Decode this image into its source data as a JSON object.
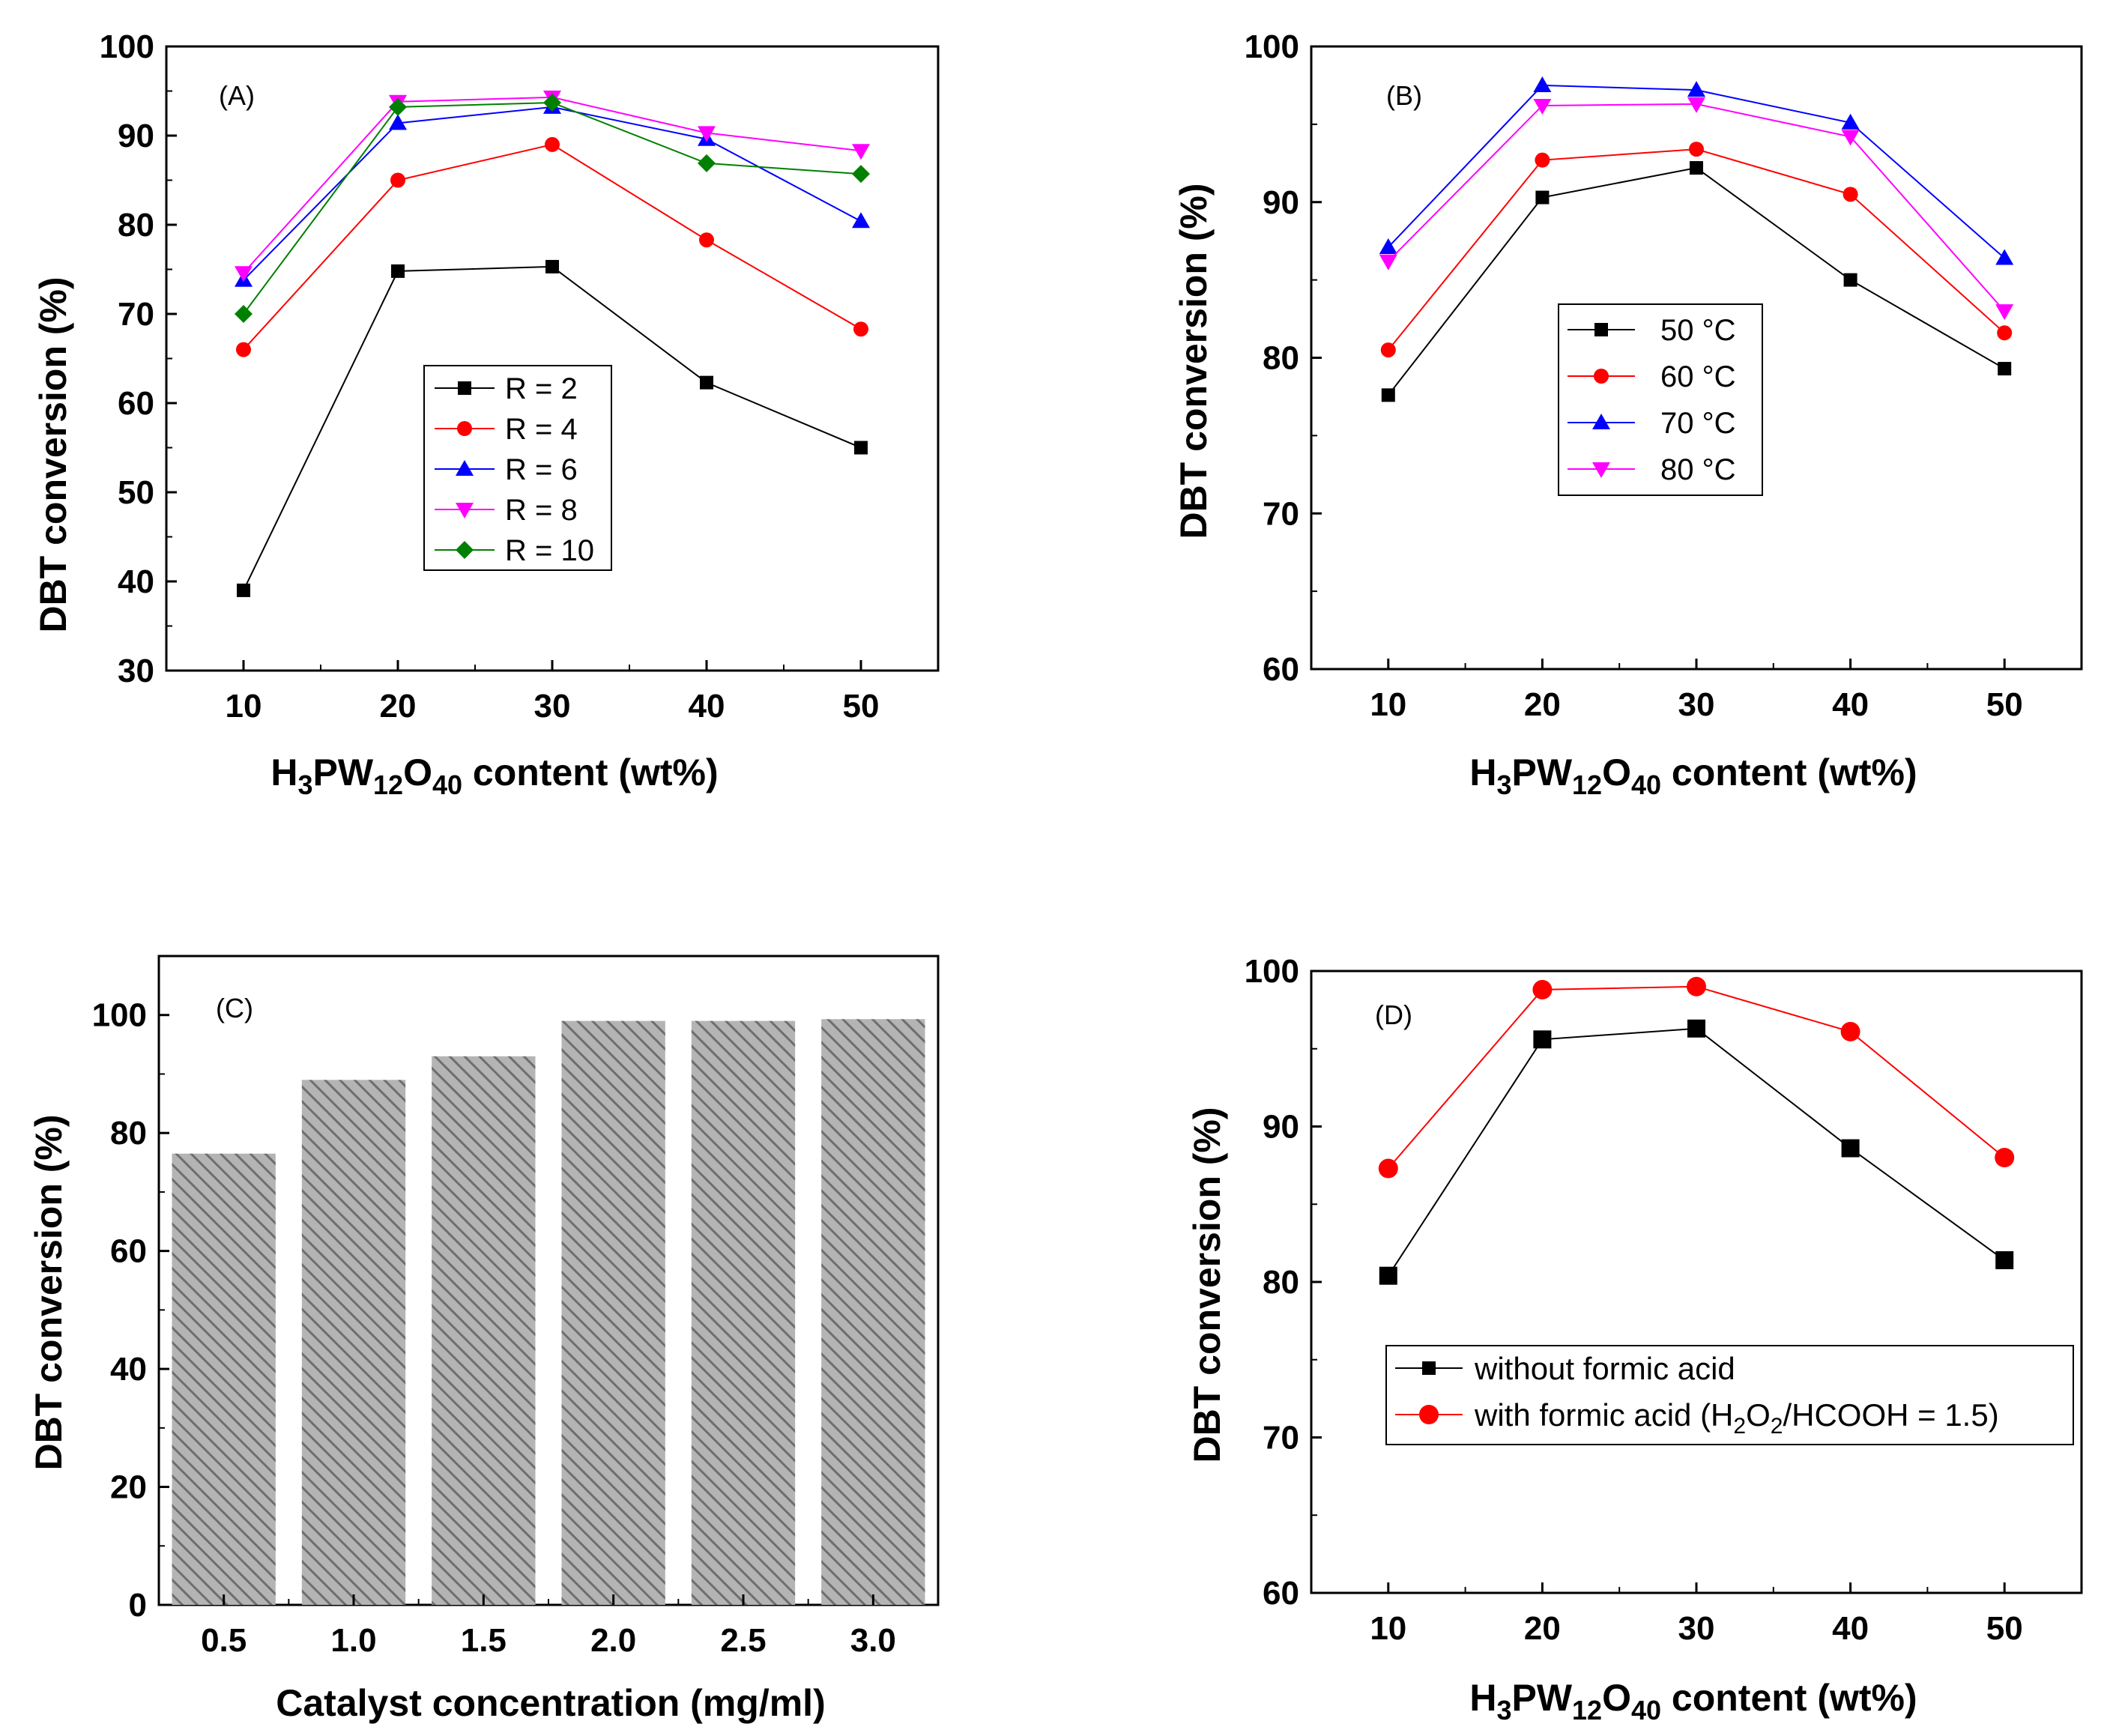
{
  "colors": {
    "black": "#000000",
    "red": "#ff0000",
    "blue": "#0000ff",
    "magenta": "#ff00ff",
    "green": "#008000",
    "bar": "#b4b4b4",
    "hatch": "#7a7a7a"
  },
  "chart_data": [
    {
      "id": "A",
      "type": "line",
      "panel_label": "(A)",
      "x": [
        10,
        20,
        30,
        40,
        50
      ],
      "x_ticks": [
        "10",
        "20",
        "30",
        "40",
        "50"
      ],
      "y_ticks": [
        "30",
        "40",
        "50",
        "60",
        "70",
        "80",
        "90",
        "100"
      ],
      "xlim": [
        5,
        55
      ],
      "ylim": [
        30,
        100
      ],
      "xlabel": {
        "main": "H",
        "s1": "3",
        "m1": "PW",
        "s2": "12",
        "m2": "O",
        "s3": "40",
        "tail": " content (wt%)"
      },
      "ylabel": "DBT conversion (%)",
      "legend_position": "center",
      "series": [
        {
          "name": "R = 2",
          "color": "#000000",
          "marker": "square",
          "values": [
            39.0,
            74.8,
            75.3,
            62.3,
            55.0
          ]
        },
        {
          "name": "R = 4",
          "color": "#ff0000",
          "marker": "circle",
          "values": [
            66.0,
            85.0,
            89.0,
            78.3,
            68.3
          ]
        },
        {
          "name": "R = 6",
          "color": "#0000ff",
          "marker": "triangle-up",
          "values": [
            73.8,
            91.4,
            93.2,
            89.6,
            80.4
          ]
        },
        {
          "name": "R = 8",
          "color": "#ff00ff",
          "marker": "triangle-down",
          "values": [
            74.6,
            93.8,
            94.3,
            90.3,
            88.3
          ]
        },
        {
          "name": "R = 10",
          "color": "#008000",
          "marker": "diamond",
          "values": [
            70.0,
            93.2,
            93.7,
            86.9,
            85.7
          ]
        }
      ]
    },
    {
      "id": "B",
      "type": "line",
      "panel_label": "(B)",
      "x": [
        10,
        20,
        30,
        40,
        50
      ],
      "x_ticks": [
        "10",
        "20",
        "30",
        "40",
        "50"
      ],
      "y_ticks": [
        "60",
        "70",
        "80",
        "90",
        "100"
      ],
      "xlim": [
        5,
        55
      ],
      "ylim": [
        60,
        100
      ],
      "xlabel": {
        "main": "H",
        "s1": "3",
        "m1": "PW",
        "s2": "12",
        "m2": "O",
        "s3": "40",
        "tail": " content (wt%)"
      },
      "ylabel": "DBT conversion (%)",
      "legend_position": "center",
      "series": [
        {
          "name": "50 °C",
          "color": "#000000",
          "marker": "square",
          "values": [
            77.6,
            90.3,
            92.2,
            85.0,
            79.3
          ]
        },
        {
          "name": "60 °C",
          "color": "#ff0000",
          "marker": "circle",
          "values": [
            80.5,
            92.7,
            93.4,
            90.5,
            81.6
          ]
        },
        {
          "name": "70 °C",
          "color": "#0000ff",
          "marker": "triangle-up",
          "values": [
            87.1,
            97.5,
            97.2,
            95.1,
            86.4
          ]
        },
        {
          "name": "80 °C",
          "color": "#ff00ff",
          "marker": "triangle-down",
          "values": [
            86.2,
            96.2,
            96.3,
            94.2,
            83.0
          ]
        }
      ]
    },
    {
      "id": "C",
      "type": "bar",
      "panel_label": "(C)",
      "categories": [
        "0.5",
        "1.0",
        "1.5",
        "2.0",
        "2.5",
        "3.0"
      ],
      "x": [
        0.5,
        1.0,
        1.5,
        2.0,
        2.5,
        3.0
      ],
      "values": [
        76.5,
        89.0,
        93.0,
        99.0,
        99.0,
        99.3
      ],
      "y_ticks": [
        "0",
        "20",
        "40",
        "60",
        "80",
        "100"
      ],
      "xlim": [
        0.25,
        3.25
      ],
      "ylim": [
        0,
        110
      ],
      "xlabel": "Catalyst concentration (mg/ml)",
      "ylabel": "DBT conversion (%)"
    },
    {
      "id": "D",
      "type": "line",
      "panel_label": "(D)",
      "x": [
        10,
        20,
        30,
        40,
        50
      ],
      "x_ticks": [
        "10",
        "20",
        "30",
        "40",
        "50"
      ],
      "y_ticks": [
        "60",
        "70",
        "80",
        "90",
        "100"
      ],
      "xlim": [
        5,
        55
      ],
      "ylim": [
        60,
        100
      ],
      "xlabel": {
        "main": "H",
        "s1": "3",
        "m1": "PW",
        "s2": "12",
        "m2": "O",
        "s3": "40",
        "tail": " content (wt%)"
      },
      "ylabel": "DBT conversion (%)",
      "legend_position": "lower-left",
      "series": [
        {
          "name": "without formic acid",
          "color": "#000000",
          "marker": "square",
          "values": [
            80.4,
            95.6,
            96.3,
            88.6,
            81.4
          ]
        },
        {
          "name": "with formic acid (H2O2/HCOOH = 1.5)",
          "color": "#ff0000",
          "marker": "circle",
          "values": [
            87.3,
            98.8,
            99.0,
            96.1,
            88.0
          ]
        }
      ],
      "legend_rich": {
        "pre": "with formic acid (H",
        "s1": "2",
        "m1": "O",
        "s2": "2",
        "post": "/HCOOH = 1.5)"
      }
    }
  ]
}
